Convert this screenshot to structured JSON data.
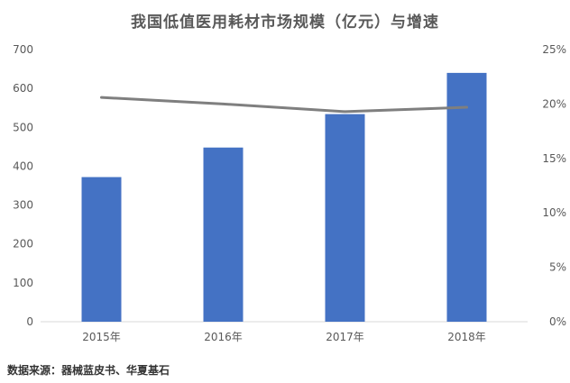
{
  "source": "数据来源：器械蓝皮书、华夏基石",
  "colors": {
    "bar": "#4472C4",
    "line": "#7F7F7F",
    "axis": "#D9D9D9",
    "text": "#595959"
  },
  "chart_data": {
    "type": "bar",
    "title": "我国低值医用耗材市场规模（亿元）与增速",
    "categories": [
      "2015年",
      "2016年",
      "2017年",
      "2018年"
    ],
    "series": [
      {
        "type": "bar",
        "axis": "left",
        "values": [
          372,
          448,
          534,
          640
        ]
      },
      {
        "type": "line",
        "axis": "right",
        "values": [
          0.206,
          0.2,
          0.193,
          0.197
        ]
      }
    ],
    "ylim": [
      0,
      700
    ],
    "y_ticks": [
      0,
      100,
      200,
      300,
      400,
      500,
      600,
      700
    ],
    "y2lim": [
      0,
      0.25
    ],
    "y2_ticks": [
      "0%",
      "5%",
      "10%",
      "15%",
      "20%",
      "25%"
    ],
    "grid": false,
    "legend": "none"
  }
}
